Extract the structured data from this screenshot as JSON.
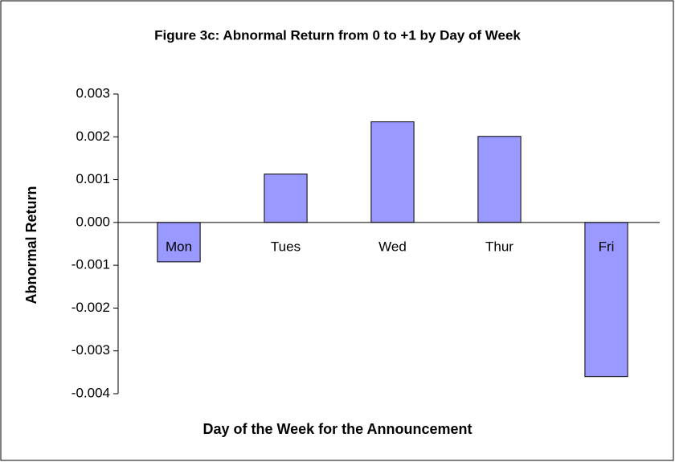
{
  "chart_data": {
    "type": "bar",
    "title": "Figure 3c: Abnormal Return from 0 to +1 by Day of Week",
    "x_label": "Day of the Week for the Announcement",
    "y_label": "Abnormal Return",
    "categories": [
      "Mon",
      "Tues",
      "Wed",
      "Thur",
      "Fri"
    ],
    "values": [
      -0.00092,
      0.00113,
      0.00235,
      0.00201,
      -0.0036
    ],
    "color": "#9999ff",
    "ylim": [
      -0.004,
      0.003
    ],
    "yticks": [
      -0.004,
      -0.003,
      -0.002,
      -0.001,
      {
        "value": 0,
        "label": "0.000"
      },
      0.001,
      0.002,
      0.003
    ],
    "grid": false
  }
}
